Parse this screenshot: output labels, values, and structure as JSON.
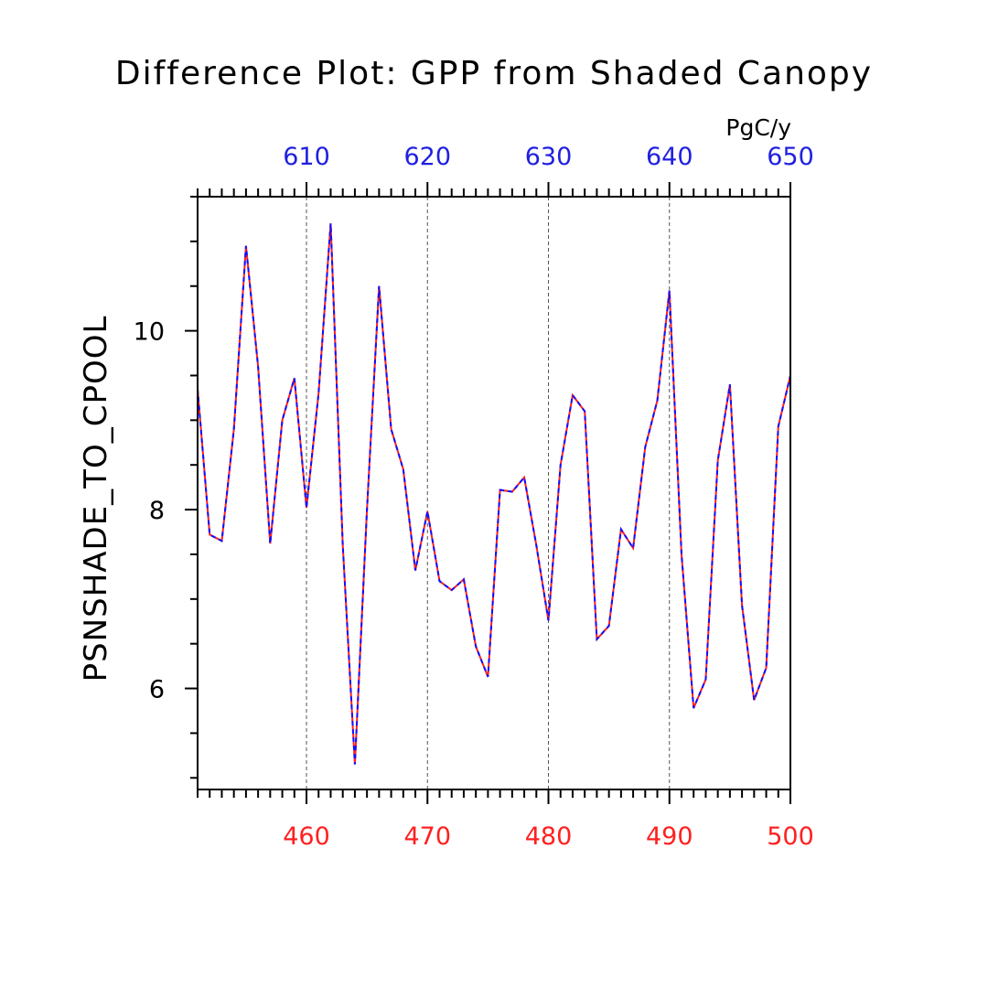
{
  "chart_data": {
    "type": "line",
    "title": "Difference Plot: GPP from Shaded Canopy",
    "ylabel": "PSNSHADE_TO_CPOOL",
    "units": "PgC/y",
    "xlabel": "",
    "xlim": [
      451,
      500
    ],
    "ylim": [
      4.87,
      11.5
    ],
    "x_ticks": [
      460,
      470,
      480,
      490,
      500
    ],
    "y_ticks": [
      6,
      8,
      10
    ],
    "top_axis": {
      "ticks": [
        610,
        620,
        630,
        640,
        650
      ],
      "range": [
        601,
        650
      ],
      "color": "#2020e0"
    },
    "bottom_tick_color": "#ff2020",
    "grid": "dashed vertical at major x ticks",
    "x": [
      451,
      452,
      453,
      454,
      455,
      456,
      457,
      458,
      459,
      460,
      461,
      462,
      463,
      464,
      465,
      466,
      467,
      468,
      469,
      470,
      471,
      472,
      473,
      474,
      475,
      476,
      477,
      478,
      479,
      480,
      481,
      482,
      483,
      484,
      485,
      486,
      487,
      488,
      489,
      490,
      491,
      492,
      493,
      494,
      495,
      496,
      497,
      498,
      499,
      500
    ],
    "series": [
      {
        "color": "#ff2020",
        "dashed": false,
        "values": [
          9.35,
          7.72,
          7.65,
          8.9,
          10.95,
          9.6,
          7.62,
          9.0,
          9.47,
          8.02,
          9.3,
          11.2,
          7.6,
          5.15,
          8.0,
          10.5,
          8.9,
          8.45,
          7.32,
          7.98,
          7.2,
          7.1,
          7.22,
          6.47,
          6.13,
          8.22,
          8.2,
          8.36,
          7.6,
          6.76,
          8.5,
          9.28,
          9.1,
          6.55,
          6.7,
          7.78,
          7.57,
          8.7,
          9.22,
          10.45,
          7.5,
          5.78,
          6.1,
          8.55,
          9.4,
          6.93,
          5.87,
          6.23,
          8.93,
          9.5
        ]
      },
      {
        "color": "#1010ff",
        "dashed": true,
        "values": [
          9.35,
          7.72,
          7.65,
          8.9,
          10.95,
          9.6,
          7.62,
          9.0,
          9.47,
          8.02,
          9.3,
          11.2,
          7.6,
          5.15,
          8.0,
          10.5,
          8.9,
          8.45,
          7.32,
          7.98,
          7.2,
          7.1,
          7.22,
          6.47,
          6.13,
          8.22,
          8.2,
          8.36,
          7.6,
          6.76,
          8.5,
          9.28,
          9.1,
          6.55,
          6.7,
          7.78,
          7.57,
          8.7,
          9.22,
          10.45,
          7.5,
          5.78,
          6.1,
          8.55,
          9.4,
          6.93,
          5.87,
          6.23,
          8.93,
          9.5
        ]
      }
    ]
  }
}
